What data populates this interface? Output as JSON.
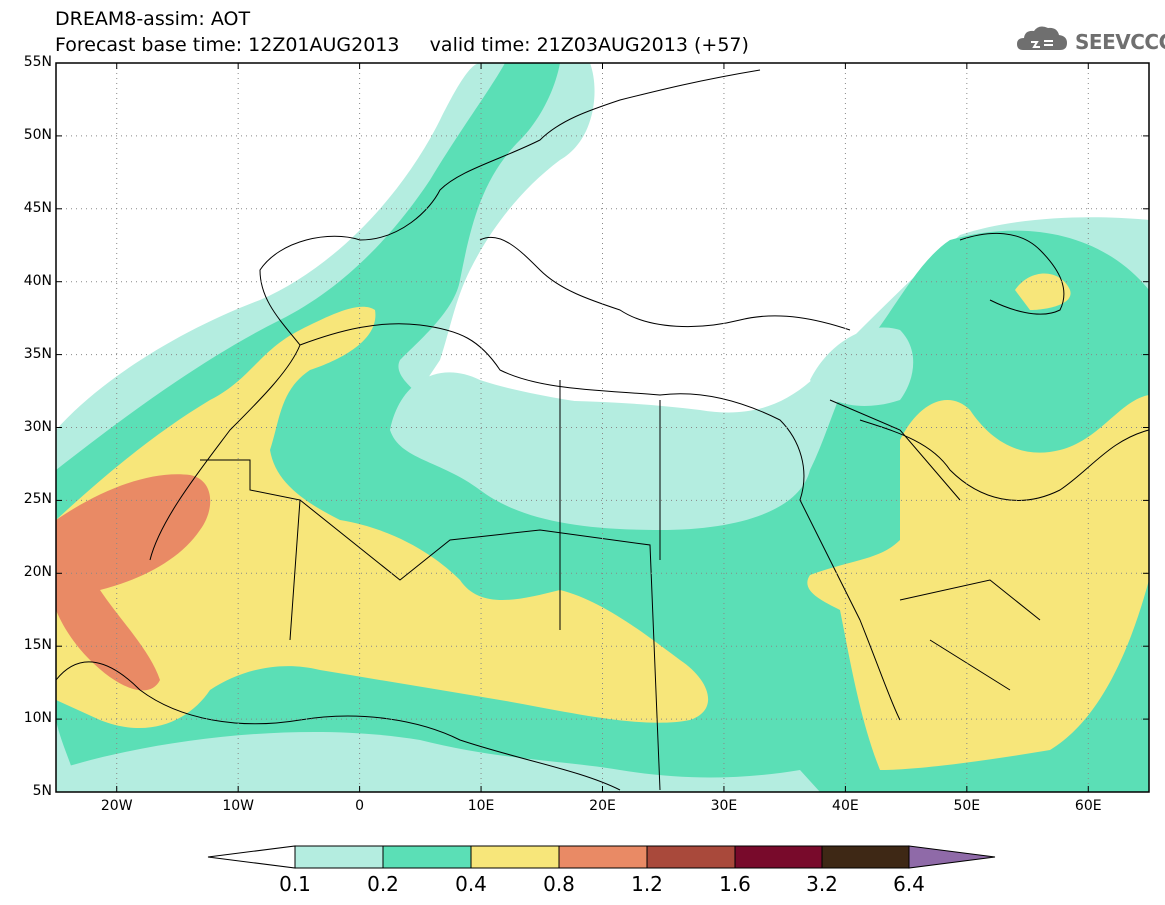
{
  "header": {
    "line1": "DREAM8-assim: AOT",
    "line2": "Forecast base time: 12Z01AUG2013     valid time: 21Z03AUG2013 (+57)",
    "logo_text": "SEEVCCC"
  },
  "map": {
    "lat_labels": [
      "55N",
      "50N",
      "45N",
      "40N",
      "35N",
      "30N",
      "25N",
      "20N",
      "15N",
      "10N",
      "5N"
    ],
    "lat_values": [
      55,
      50,
      45,
      40,
      35,
      30,
      25,
      20,
      15,
      10,
      5
    ],
    "lon_labels": [
      "20W",
      "10W",
      "0",
      "10E",
      "20E",
      "30E",
      "40E",
      "50E",
      "60E"
    ],
    "lon_values": [
      -20,
      -10,
      0,
      10,
      20,
      30,
      40,
      50,
      60
    ],
    "lon_range": [
      -25,
      65
    ],
    "lat_range": [
      5,
      55
    ],
    "grid": "dotted"
  },
  "colorbar": {
    "labels": [
      "0.1",
      "0.2",
      "0.4",
      "0.8",
      "1.2",
      "1.6",
      "3.2",
      "6.4"
    ],
    "colors": [
      "#ffffff",
      "#b4ede0",
      "#5bdfb6",
      "#f7e67a",
      "#e98a65",
      "#a9493b",
      "#780a2b",
      "#3e2815",
      "#8f6aa8"
    ]
  },
  "colors": {
    "aot_01_02": "#b4ede0",
    "aot_02_04": "#5bdfb6",
    "aot_04_08": "#f7e67a",
    "aot_08_12": "#e98a65"
  }
}
